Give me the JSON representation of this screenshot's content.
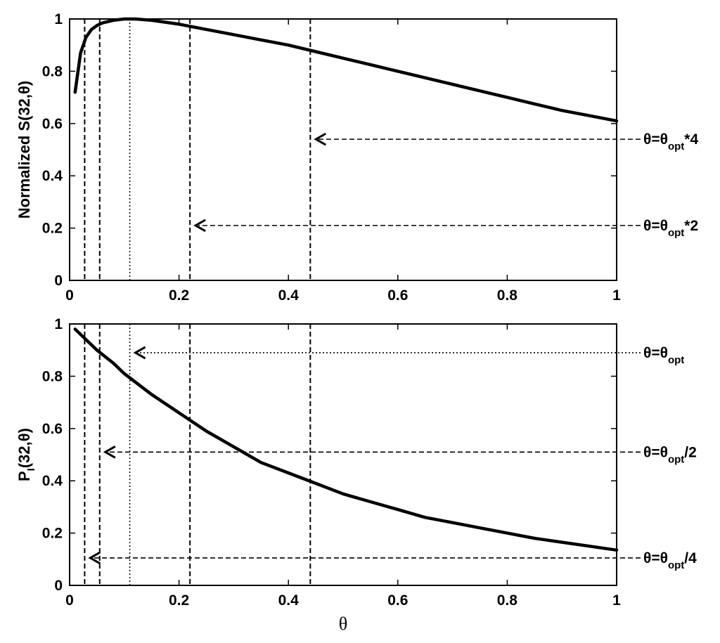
{
  "chart_data": [
    {
      "type": "line",
      "panel": "top",
      "ylabel": "Normalized S(32,θ)",
      "xlabel": "",
      "xlim": [
        0,
        1
      ],
      "ylim": [
        0,
        1
      ],
      "xticks": [
        "0",
        "0.2",
        "0.4",
        "0.6",
        "0.8",
        "1"
      ],
      "yticks": [
        "0",
        "0.2",
        "0.4",
        "0.6",
        "0.8",
        "1"
      ],
      "series": [
        {
          "style": "solid",
          "x": [
            0.01,
            0.02,
            0.03,
            0.04,
            0.05,
            0.06,
            0.08,
            0.1,
            0.12,
            0.15,
            0.2,
            0.25,
            0.3,
            0.35,
            0.4,
            0.45,
            0.5,
            0.55,
            0.6,
            0.65,
            0.7,
            0.75,
            0.8,
            0.85,
            0.9,
            0.95,
            1.0
          ],
          "y": [
            0.72,
            0.87,
            0.93,
            0.96,
            0.975,
            0.985,
            0.995,
            1.0,
            1.0,
            0.995,
            0.98,
            0.96,
            0.94,
            0.92,
            0.9,
            0.875,
            0.85,
            0.825,
            0.8,
            0.775,
            0.75,
            0.725,
            0.7,
            0.675,
            0.65,
            0.63,
            0.61
          ]
        }
      ],
      "vlines": [
        {
          "x": 0.0275,
          "style": "dashed"
        },
        {
          "x": 0.055,
          "style": "dashed"
        },
        {
          "x": 0.11,
          "style": "dotted"
        },
        {
          "x": 0.22,
          "style": "dashed"
        },
        {
          "x": 0.44,
          "style": "dashed"
        }
      ],
      "annotations": [
        {
          "base": "θ=θ",
          "sub": "opt",
          "suffix": "*4",
          "y": 0.54,
          "target_x": 0.44,
          "style": "dashed"
        },
        {
          "base": "θ=θ",
          "sub": "opt",
          "suffix": "*2",
          "y": 0.21,
          "target_x": 0.22,
          "style": "dashed"
        }
      ]
    },
    {
      "type": "line",
      "panel": "bottom",
      "ylabel_base": "P",
      "ylabel_sub": "I",
      "ylabel_rest": "(32,θ)",
      "xlabel": "θ",
      "xlim": [
        0,
        1
      ],
      "ylim": [
        0,
        1
      ],
      "xticks": [
        "0",
        "0.2",
        "0.4",
        "0.6",
        "0.8",
        "1"
      ],
      "yticks": [
        "0",
        "0.2",
        "0.4",
        "0.6",
        "0.8",
        "1"
      ],
      "series": [
        {
          "style": "solid",
          "x": [
            0.01,
            0.03,
            0.05,
            0.08,
            0.1,
            0.15,
            0.2,
            0.25,
            0.3,
            0.35,
            0.4,
            0.45,
            0.5,
            0.55,
            0.6,
            0.65,
            0.7,
            0.75,
            0.8,
            0.85,
            0.9,
            0.95,
            1.0
          ],
          "y": [
            0.98,
            0.94,
            0.9,
            0.85,
            0.81,
            0.73,
            0.66,
            0.59,
            0.53,
            0.47,
            0.43,
            0.39,
            0.35,
            0.32,
            0.29,
            0.26,
            0.24,
            0.22,
            0.2,
            0.18,
            0.165,
            0.15,
            0.135
          ]
        }
      ],
      "vlines": [
        {
          "x": 0.0275,
          "style": "dashed"
        },
        {
          "x": 0.055,
          "style": "dashed"
        },
        {
          "x": 0.11,
          "style": "dotted"
        },
        {
          "x": 0.22,
          "style": "dashed"
        },
        {
          "x": 0.44,
          "style": "dashed"
        }
      ],
      "annotations": [
        {
          "base": "θ=θ",
          "sub": "opt",
          "suffix": "",
          "y": 0.89,
          "target_x": 0.11,
          "style": "dotted"
        },
        {
          "base": "θ=θ",
          "sub": "opt",
          "suffix": "/2",
          "y": 0.51,
          "target_x": 0.055,
          "style": "dashed"
        },
        {
          "base": "θ=θ",
          "sub": "opt",
          "suffix": "/4",
          "y": 0.105,
          "target_x": 0.0275,
          "style": "dashed"
        }
      ]
    }
  ]
}
